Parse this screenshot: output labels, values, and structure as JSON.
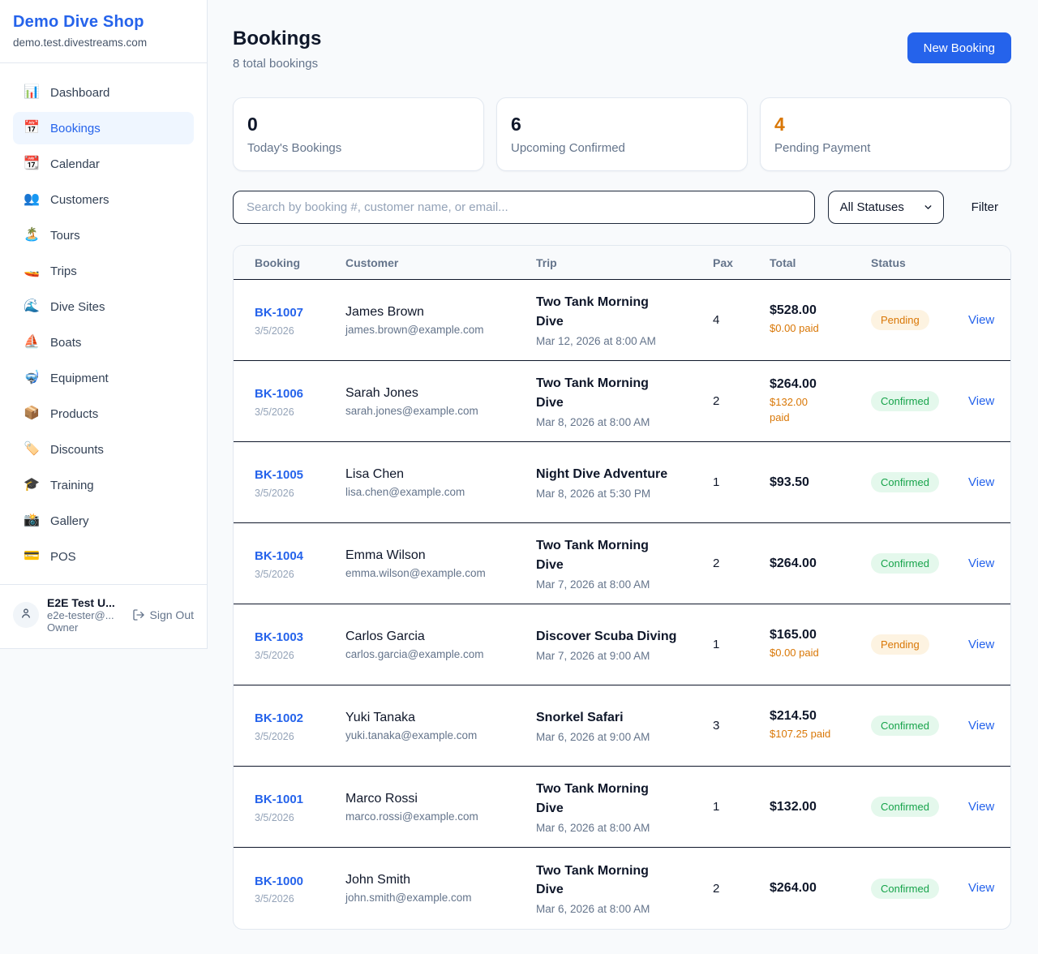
{
  "colors": {
    "accent_blue": "#2563eb",
    "pending_orange": "#d97706",
    "confirmed_green": "#16a34a"
  },
  "sidebar": {
    "shop_name": "Demo Dive Shop",
    "domain": "demo.test.divestreams.com",
    "active_item": "Bookings",
    "items": [
      {
        "label": "Dashboard",
        "icon": "📊",
        "icon_name": "bar-chart-icon"
      },
      {
        "label": "Bookings",
        "icon": "📅",
        "icon_name": "calendar-icon"
      },
      {
        "label": "Calendar",
        "icon": "📆",
        "icon_name": "tear-off-calendar-icon"
      },
      {
        "label": "Customers",
        "icon": "👥",
        "icon_name": "people-icon"
      },
      {
        "label": "Tours",
        "icon": "🏝️",
        "icon_name": "island-icon"
      },
      {
        "label": "Trips",
        "icon": "🚤",
        "icon_name": "speedboat-icon"
      },
      {
        "label": "Dive Sites",
        "icon": "🌊",
        "icon_name": "wave-icon"
      },
      {
        "label": "Boats",
        "icon": "⛵",
        "icon_name": "sailboat-icon"
      },
      {
        "label": "Equipment",
        "icon": "🤿",
        "icon_name": "diving-mask-icon"
      },
      {
        "label": "Products",
        "icon": "📦",
        "icon_name": "package-icon"
      },
      {
        "label": "Discounts",
        "icon": "🏷️",
        "icon_name": "tag-icon"
      },
      {
        "label": "Training",
        "icon": "🎓",
        "icon_name": "graduation-cap-icon"
      },
      {
        "label": "Gallery",
        "icon": "📸",
        "icon_name": "camera-icon"
      },
      {
        "label": "POS",
        "icon": "💳",
        "icon_name": "credit-card-icon"
      }
    ],
    "user": {
      "name": "E2E Test U...",
      "email": "e2e-tester@...",
      "role": "Owner",
      "sign_out_label": "Sign Out"
    }
  },
  "header": {
    "title": "Bookings",
    "subtitle": "8 total bookings",
    "new_booking_label": "New Booking"
  },
  "stats": [
    {
      "value": "0",
      "label": "Today's Bookings"
    },
    {
      "value": "6",
      "label": "Upcoming Confirmed"
    },
    {
      "value": "4",
      "label": "Pending Payment",
      "color": "#d97706"
    }
  ],
  "filters": {
    "search_placeholder": "Search by booking #, customer name, or email...",
    "status_select": "All Statuses",
    "filter_label": "Filter"
  },
  "table": {
    "columns": [
      "Booking",
      "Customer",
      "Trip",
      "Pax",
      "Total",
      "Status"
    ],
    "view_label": "View",
    "rows": [
      {
        "id": "BK-1007",
        "date": "3/5/2026",
        "customer": "James Brown",
        "email": "james.brown@example.com",
        "trip": "Two Tank Morning Dive",
        "datetime": "Mar 12, 2026 at 8:00 AM",
        "pax": "4",
        "total": "$528.00",
        "paid": "$0.00 paid",
        "status": "Pending"
      },
      {
        "id": "BK-1006",
        "date": "3/5/2026",
        "customer": "Sarah Jones",
        "email": "sarah.jones@example.com",
        "trip": "Two Tank Morning Dive",
        "datetime": "Mar 8, 2026 at 8:00 AM",
        "pax": "2",
        "total": "$264.00",
        "paid": "$132.00 paid",
        "status": "Confirmed"
      },
      {
        "id": "BK-1005",
        "date": "3/5/2026",
        "customer": "Lisa Chen",
        "email": "lisa.chen@example.com",
        "trip": "Night Dive Adventure",
        "datetime": "Mar 8, 2026 at 5:30 PM",
        "pax": "1",
        "total": "$93.50",
        "paid": "",
        "status": "Confirmed"
      },
      {
        "id": "BK-1004",
        "date": "3/5/2026",
        "customer": "Emma Wilson",
        "email": "emma.wilson@example.com",
        "trip": "Two Tank Morning Dive",
        "datetime": "Mar 7, 2026 at 8:00 AM",
        "pax": "2",
        "total": "$264.00",
        "paid": "",
        "status": "Confirmed"
      },
      {
        "id": "BK-1003",
        "date": "3/5/2026",
        "customer": "Carlos Garcia",
        "email": "carlos.garcia@example.com",
        "trip": "Discover Scuba Diving",
        "datetime": "Mar 7, 2026 at 9:00 AM",
        "pax": "1",
        "total": "$165.00",
        "paid": "$0.00 paid",
        "status": "Pending"
      },
      {
        "id": "BK-1002",
        "date": "3/5/2026",
        "customer": "Yuki Tanaka",
        "email": "yuki.tanaka@example.com",
        "trip": "Snorkel Safari",
        "datetime": "Mar 6, 2026 at 9:00 AM",
        "pax": "3",
        "total": "$214.50",
        "paid": "$107.25 paid",
        "status": "Confirmed"
      },
      {
        "id": "BK-1001",
        "date": "3/5/2026",
        "customer": "Marco Rossi",
        "email": "marco.rossi@example.com",
        "trip": "Two Tank Morning Dive",
        "datetime": "Mar 6, 2026 at 8:00 AM",
        "pax": "1",
        "total": "$132.00",
        "paid": "",
        "status": "Confirmed"
      },
      {
        "id": "BK-1000",
        "date": "3/5/2026",
        "customer": "John Smith",
        "email": "john.smith@example.com",
        "trip": "Two Tank Morning Dive",
        "datetime": "Mar 6, 2026 at 8:00 AM",
        "pax": "2",
        "total": "$264.00",
        "paid": "",
        "status": "Confirmed"
      }
    ]
  }
}
